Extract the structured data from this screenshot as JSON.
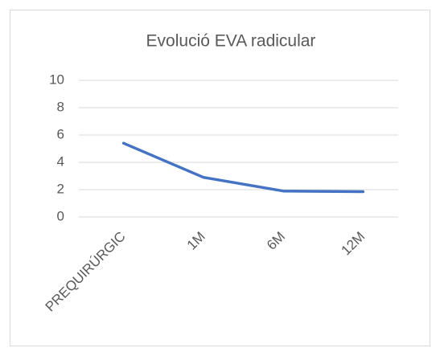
{
  "chart_data": {
    "type": "line",
    "title": "Evolució EVA radicular",
    "categories": [
      "PREQUIRÚRGIC",
      "1M",
      "6M",
      "12M"
    ],
    "series": [
      {
        "name": "EVA radicular",
        "color": "#4472c4",
        "values": [
          5.4,
          2.9,
          1.9,
          1.85
        ]
      }
    ],
    "ylim": [
      0,
      10
    ],
    "yticks": [
      0,
      2,
      4,
      6,
      8,
      10
    ],
    "grid": true
  }
}
